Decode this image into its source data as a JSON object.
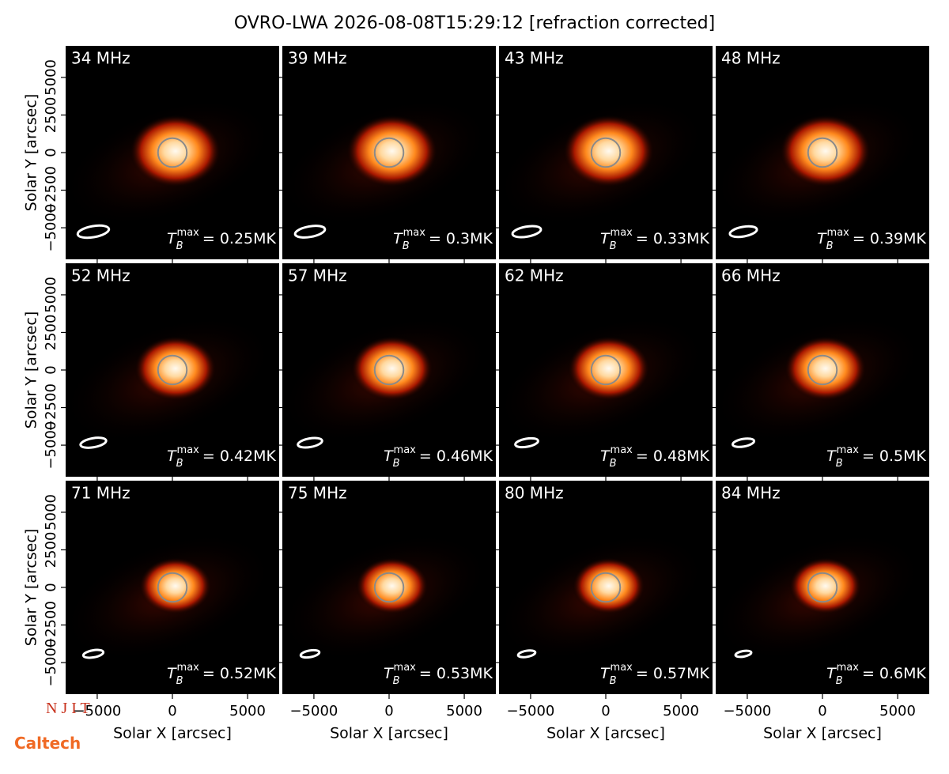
{
  "chart_data": {
    "type": "image-grid",
    "title": "OVRO-LWA 2026-08-08T15:29:12 [refraction corrected]",
    "x_label": "Solar X [arcsec]",
    "y_label": "Solar Y [arcsec]",
    "xlim": [
      -7100,
      7100
    ],
    "ylim": [
      -7100,
      7100
    ],
    "xticks": [
      {
        "value": -5000,
        "label": "−5000"
      },
      0,
      5000
    ],
    "yticks": [
      {
        "value": -5000,
        "label": "−5000"
      },
      {
        "value": -2500,
        "label": "−2500"
      },
      0,
      2500,
      5000
    ],
    "tmax_symbol": {
      "base": "T",
      "sub": "B",
      "sup": "max"
    },
    "panels": [
      {
        "label": "34 MHz",
        "tmax_label": "= 0.25MK"
      },
      {
        "label": "39 MHz",
        "tmax_label": "= 0.3MK"
      },
      {
        "label": "43 MHz",
        "tmax_label": "= 0.33MK"
      },
      {
        "label": "48 MHz",
        "tmax_label": "= 0.39MK"
      },
      {
        "label": "52 MHz",
        "tmax_label": "= 0.42MK"
      },
      {
        "label": "57 MHz",
        "tmax_label": "= 0.46MK"
      },
      {
        "label": "62 MHz",
        "tmax_label": "= 0.48MK"
      },
      {
        "label": "66 MHz",
        "tmax_label": "= 0.5MK"
      },
      {
        "label": "71 MHz",
        "tmax_label": "= 0.52MK"
      },
      {
        "label": "75 MHz",
        "tmax_label": "= 0.53MK"
      },
      {
        "label": "80 MHz",
        "tmax_label": "= 0.57MK"
      },
      {
        "label": "84 MHz",
        "tmax_label": "= 0.6MK"
      }
    ]
  },
  "logos": [
    "N J I T",
    "Caltech"
  ]
}
